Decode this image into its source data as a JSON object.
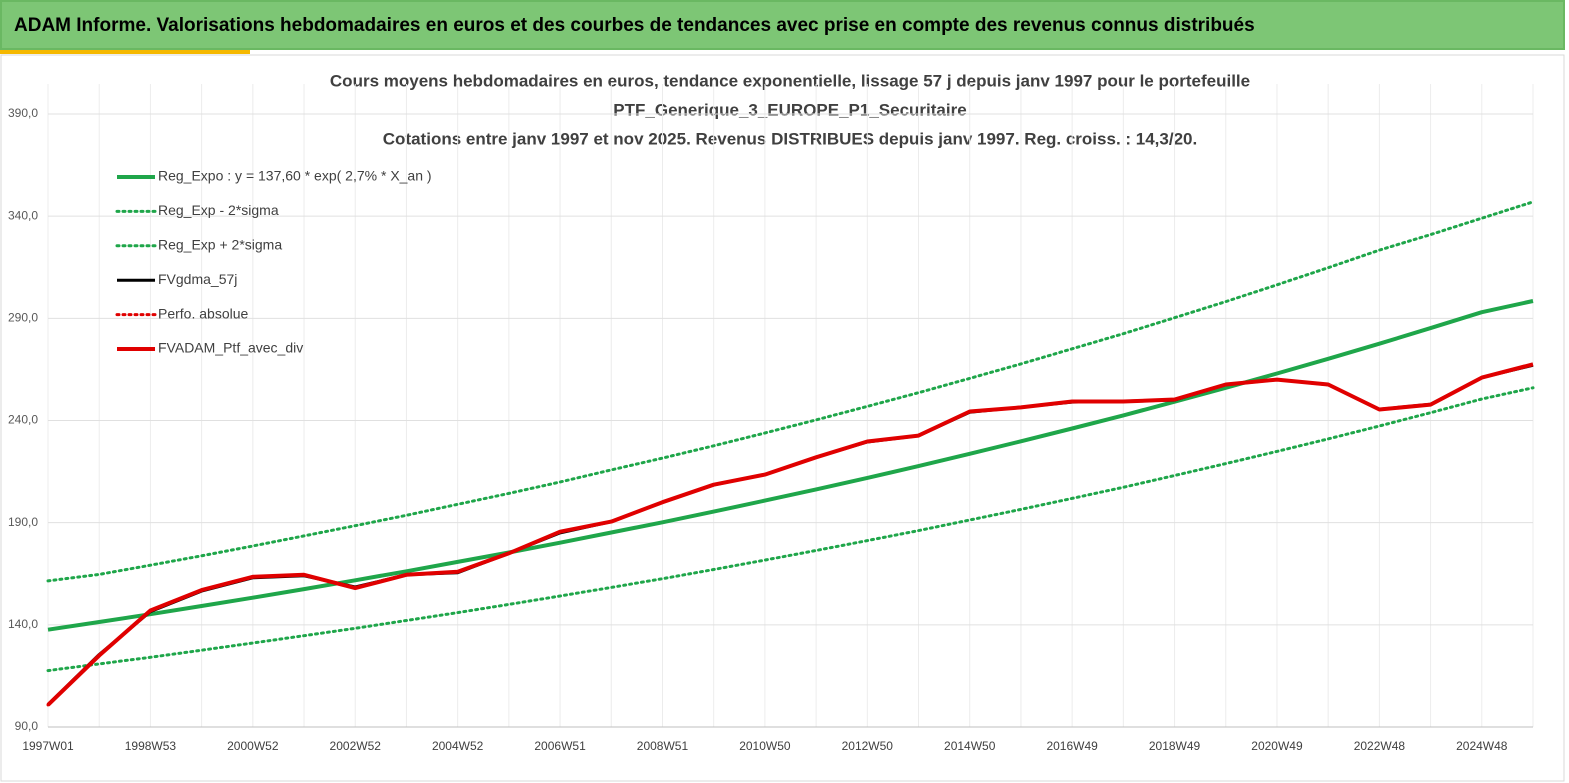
{
  "header": {
    "title": "ADAM Informe. Valorisations hebdomadaires en euros et des courbes de tendances avec prise en compte des revenus connus distribués"
  },
  "chart_data": {
    "type": "line",
    "title": [
      "Cours moyens hebdomadaires  en euros, tendance exponentielle, lissage 57 j depuis janv 1997 pour le portefeuille",
      "PTF_Generique_3_EUROPE_P1_Securitaire",
      "Cotations  entre janv 1997 et nov 2025. Revenus DISTRIBUES depuis janv 1997. Reg. croiss. : 14,3/20."
    ],
    "categories": [
      "1997W01",
      null,
      "1998W53",
      null,
      "2000W52",
      null,
      "2002W52",
      null,
      "2004W52",
      null,
      "2006W51",
      null,
      "2008W51",
      null,
      "2010W50",
      null,
      "2012W50",
      null,
      "2014W50",
      null,
      "2016W49",
      null,
      "2018W49",
      null,
      "2020W49",
      null,
      "2022W48",
      null,
      "2024W48",
      null
    ],
    "ylim": [
      90,
      390
    ],
    "yticks": [
      {
        "value": 90,
        "label": "90,0"
      },
      {
        "value": 140,
        "label": "140,0"
      },
      {
        "value": 190,
        "label": "190,0"
      },
      {
        "value": 240,
        "label": "240,0"
      },
      {
        "value": 290,
        "label": "290,0"
      },
      {
        "value": 340,
        "label": "340,0"
      },
      {
        "value": 390,
        "label": "390,0"
      }
    ],
    "grid": true,
    "series": [
      {
        "name": "Reg_Expo : y = 137,60 * exp( 2,7% *  X_an )",
        "color": "#1fa64a",
        "dash": "solid",
        "width": 4,
        "values": [
          137.6,
          141.4,
          145.2,
          149.2,
          153.3,
          157.5,
          161.8,
          166.2,
          170.8,
          175.4,
          180.2,
          185.2,
          190.2,
          195.4,
          200.8,
          206.3,
          211.9,
          217.7,
          223.7,
          229.8,
          236.1,
          242.5,
          249.2,
          256.0,
          263.0,
          270.2,
          277.6,
          285.2,
          293.0,
          298.5
        ]
      },
      {
        "name": "Reg_Exp - 2*sigma",
        "color": "#1fa64a",
        "dash": "dotted",
        "width": 3,
        "values": [
          117.6,
          120.9,
          124.1,
          127.6,
          131.1,
          134.7,
          138.3,
          142.1,
          146.0,
          150.0,
          154.1,
          158.3,
          162.6,
          167.1,
          171.7,
          176.4,
          181.2,
          186.1,
          191.3,
          196.5,
          201.9,
          207.3,
          213.1,
          218.9,
          224.9,
          231.0,
          237.3,
          243.8,
          250.5,
          256.0
        ]
      },
      {
        "name": "Reg_Exp + 2*sigma",
        "color": "#1fa64a",
        "dash": "dotted",
        "width": 3,
        "values": [
          161.5,
          164.7,
          169.2,
          173.8,
          178.6,
          183.5,
          188.5,
          193.6,
          199.0,
          204.3,
          209.9,
          215.8,
          221.6,
          227.6,
          233.9,
          240.3,
          246.9,
          253.6,
          260.6,
          267.7,
          275.1,
          282.5,
          290.3,
          298.2,
          306.4,
          314.8,
          323.4,
          331.0,
          339.0,
          347.0
        ]
      },
      {
        "name": "FVgdma_57j",
        "color": "#000000",
        "dash": "solid",
        "width": 3,
        "values": [
          101.0,
          125.5,
          146.5,
          156.5,
          163.0,
          164.0,
          158.5,
          164.5,
          165.5,
          175.0,
          185.0,
          190.5,
          200.0,
          208.5,
          213.5,
          222.0,
          229.5,
          232.5,
          244.0,
          246.5,
          249.0,
          249.5,
          250.0,
          257.5,
          260.0,
          257.5,
          245.5,
          248.0,
          261.0,
          267.0
        ]
      },
      {
        "name": "Perfo. absolue",
        "color": "#e00000",
        "dash": "dotted",
        "width": 3,
        "values": [
          100.8,
          125.0,
          147.0,
          157.0,
          163.5,
          164.5,
          158.0,
          164.5,
          166.0,
          175.0,
          185.6,
          190.5,
          200.0,
          208.6,
          213.5,
          222.0,
          229.7,
          232.6,
          244.4,
          246.4,
          249.3,
          249.3,
          250.3,
          257.6,
          260.0,
          257.6,
          245.4,
          247.8,
          261.0,
          267.5
        ]
      },
      {
        "name": "FVADAM_Ptf_avec_div",
        "color": "#e00000",
        "dash": "solid",
        "width": 4,
        "values": [
          100.8,
          125.0,
          147.0,
          157.0,
          163.5,
          164.5,
          158.0,
          164.5,
          166.0,
          175.0,
          185.6,
          190.5,
          200.0,
          208.6,
          213.5,
          222.0,
          229.7,
          232.6,
          244.4,
          246.4,
          249.3,
          249.3,
          250.3,
          257.6,
          260.0,
          257.6,
          245.4,
          247.8,
          261.0,
          267.5
        ]
      }
    ]
  }
}
